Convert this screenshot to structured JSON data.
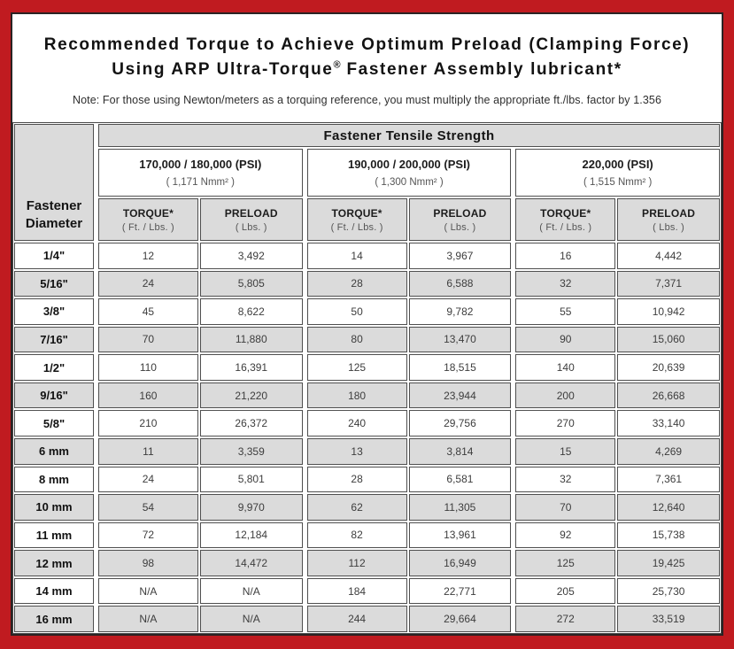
{
  "title": {
    "line1": "Recommended Torque to Achieve Optimum Preload (Clamping Force)",
    "line2_pre": "Using ARP Ultra-Torque",
    "line2_reg": "®",
    "line2_post": " Fastener Assembly lubricant*",
    "note": "Note: For those using Newton/meters as a torquing reference, you must multiply the appropriate ft./lbs. factor by 1.356"
  },
  "table": {
    "tensile_header": "Fastener Tensile Strength",
    "diameter_line1": "Fastener",
    "diameter_line2": "Diameter",
    "col_headers": {
      "torque": "TORQUE*",
      "torque_unit": "( Ft. / Lbs. )",
      "preload": "PRELOAD",
      "preload_unit": "( Lbs. )"
    },
    "groups": [
      {
        "psi": "170,000 / 180,000 (PSI)",
        "nmm": "( 1,171 Nmm² )"
      },
      {
        "psi": "190,000 / 200,000 (PSI)",
        "nmm": "( 1,300 Nmm² )"
      },
      {
        "psi": "220,000 (PSI)",
        "nmm": "( 1,515 Nmm² )"
      }
    ],
    "rows": [
      {
        "diameter": "1/4\"",
        "values": [
          "12",
          "3,492",
          "14",
          "3,967",
          "16",
          "4,442"
        ]
      },
      {
        "diameter": "5/16\"",
        "values": [
          "24",
          "5,805",
          "28",
          "6,588",
          "32",
          "7,371"
        ]
      },
      {
        "diameter": "3/8\"",
        "values": [
          "45",
          "8,622",
          "50",
          "9,782",
          "55",
          "10,942"
        ]
      },
      {
        "diameter": "7/16\"",
        "values": [
          "70",
          "11,880",
          "80",
          "13,470",
          "90",
          "15,060"
        ]
      },
      {
        "diameter": "1/2\"",
        "values": [
          "110",
          "16,391",
          "125",
          "18,515",
          "140",
          "20,639"
        ]
      },
      {
        "diameter": "9/16\"",
        "values": [
          "160",
          "21,220",
          "180",
          "23,944",
          "200",
          "26,668"
        ]
      },
      {
        "diameter": "5/8\"",
        "values": [
          "210",
          "26,372",
          "240",
          "29,756",
          "270",
          "33,140"
        ]
      },
      {
        "diameter": "6 mm",
        "values": [
          "11",
          "3,359",
          "13",
          "3,814",
          "15",
          "4,269"
        ]
      },
      {
        "diameter": "8 mm",
        "values": [
          "24",
          "5,801",
          "28",
          "6,581",
          "32",
          "7,361"
        ]
      },
      {
        "diameter": "10 mm",
        "values": [
          "54",
          "9,970",
          "62",
          "11,305",
          "70",
          "12,640"
        ]
      },
      {
        "diameter": "11 mm",
        "values": [
          "72",
          "12,184",
          "82",
          "13,961",
          "92",
          "15,738"
        ]
      },
      {
        "diameter": "12 mm",
        "values": [
          "98",
          "14,472",
          "112",
          "16,949",
          "125",
          "19,425"
        ]
      },
      {
        "diameter": "14 mm",
        "values": [
          "N/A",
          "N/A",
          "184",
          "22,771",
          "205",
          "25,730"
        ]
      },
      {
        "diameter": "16 mm",
        "values": [
          "N/A",
          "N/A",
          "244",
          "29,664",
          "272",
          "33,519"
        ]
      }
    ]
  },
  "colors": {
    "frame_red": "#C01B20",
    "cell_gray": "#DBDBDB",
    "grid_line": "#4F4F4F"
  }
}
